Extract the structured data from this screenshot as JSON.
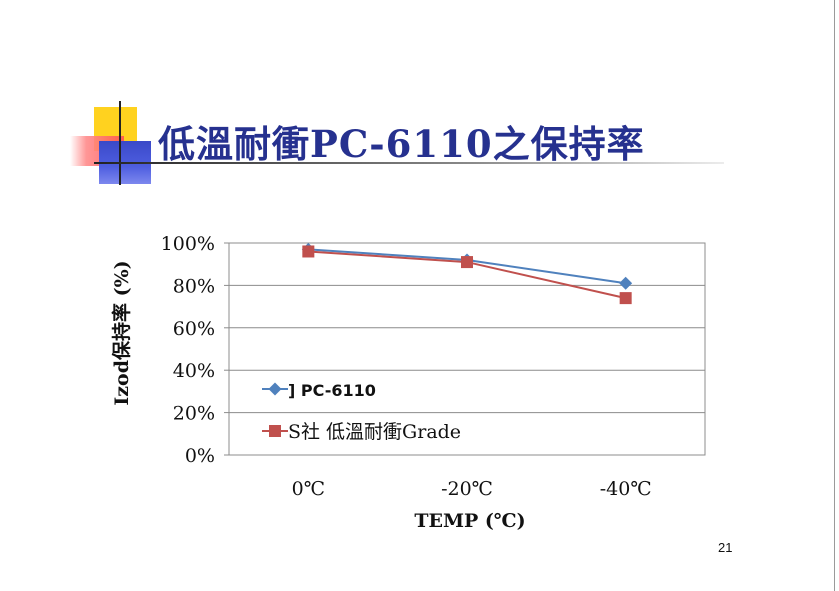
{
  "slide": {
    "title": "低溫耐衝PC-6110之保持率",
    "page_number": "21"
  },
  "chart_data": {
    "type": "line",
    "title": "",
    "categories": [
      "0℃",
      "-20℃",
      "-40℃"
    ],
    "xlabel": "TEMP (℃)",
    "ylabel": "Izod保持率 (%)",
    "ylim": [
      0,
      100
    ],
    "yticks": [
      0,
      20,
      40,
      60,
      80,
      100
    ],
    "ytick_labels": [
      "0%",
      "20%",
      "40%",
      "60%",
      "80%",
      "100%"
    ],
    "grid": true,
    "legend": "inside-bottom-left",
    "series": [
      {
        "name": "] PC-6110",
        "values": [
          97,
          92,
          81
        ],
        "color": "#4f81bd",
        "marker": "diamond"
      },
      {
        "name": "S社 低溫耐衝Grade",
        "values": [
          96,
          91,
          74
        ],
        "color": "#c0504d",
        "marker": "square"
      }
    ]
  }
}
